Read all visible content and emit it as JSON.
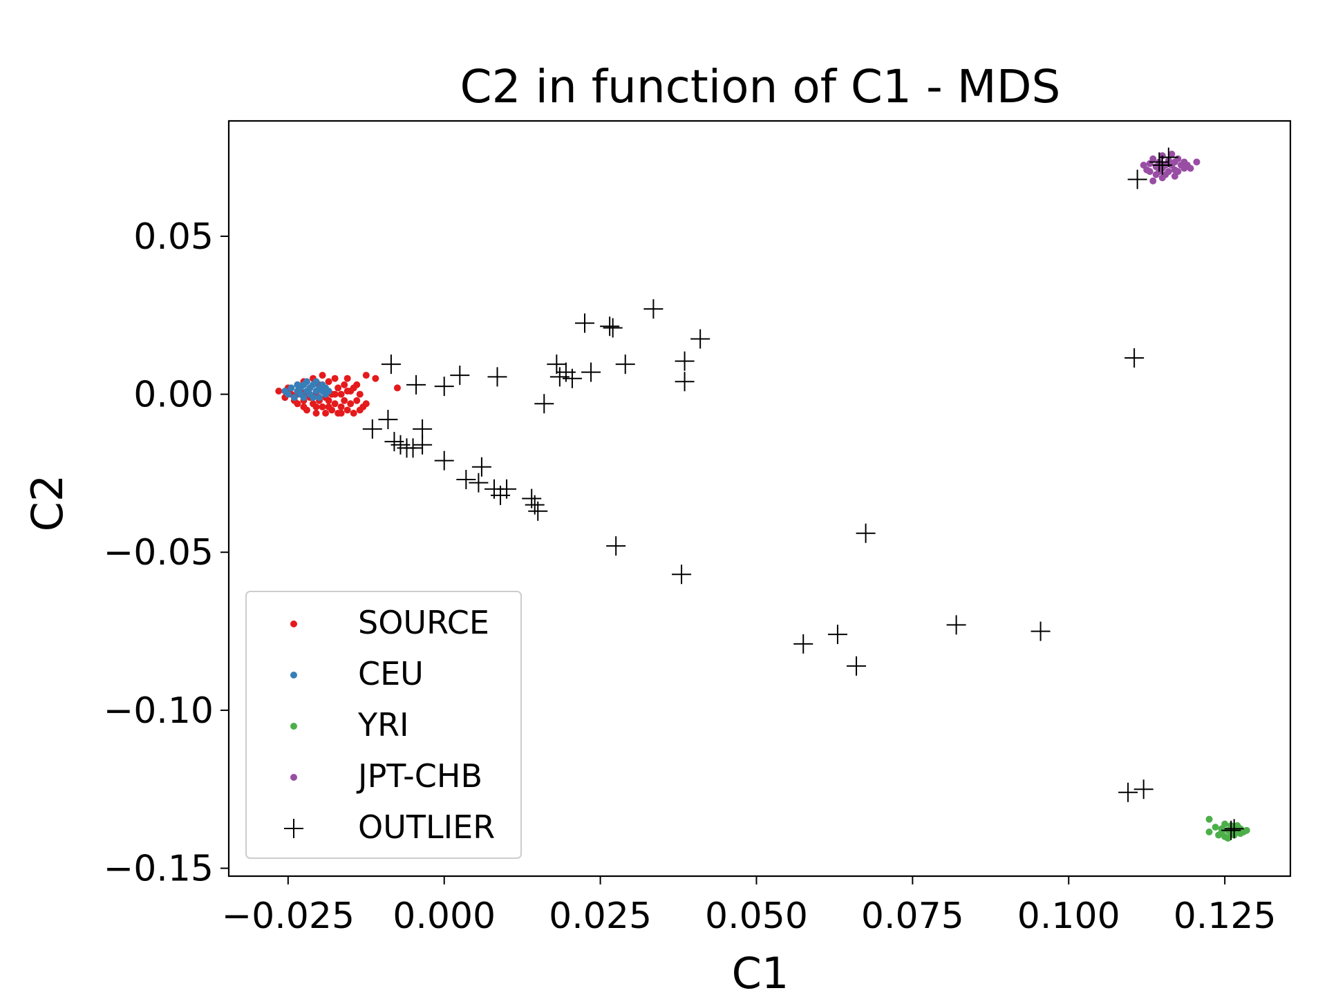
{
  "chart_data": {
    "type": "scatter",
    "title": "C2 in function of C1 - MDS",
    "xlabel": "C1",
    "ylabel": "C2",
    "xlim": [
      -0.0345,
      0.1355
    ],
    "ylim": [
      -0.1525,
      0.0865
    ],
    "xticks": [
      {
        "value": -0.025,
        "label": "−0.025"
      },
      {
        "value": 0.0,
        "label": "0.000"
      },
      {
        "value": 0.025,
        "label": "0.025"
      },
      {
        "value": 0.05,
        "label": "0.050"
      },
      {
        "value": 0.075,
        "label": "0.075"
      },
      {
        "value": 0.1,
        "label": "0.100"
      },
      {
        "value": 0.125,
        "label": "0.125"
      }
    ],
    "yticks": [
      {
        "value": 0.05,
        "label": "0.05"
      },
      {
        "value": 0.0,
        "label": "0.00"
      },
      {
        "value": -0.05,
        "label": "−0.05"
      },
      {
        "value": -0.1,
        "label": "−0.10"
      },
      {
        "value": -0.15,
        "label": "−0.15"
      }
    ],
    "grid": false,
    "legend_position": "lower-left",
    "series": [
      {
        "name": "SOURCE",
        "color": "#e41a1c",
        "marker": "dot",
        "points": [
          [
            -0.0265,
            0.001
          ],
          [
            -0.0255,
            -0.001
          ],
          [
            -0.025,
            0.002
          ],
          [
            -0.0245,
            0.0
          ],
          [
            -0.024,
            -0.002
          ],
          [
            -0.0235,
            0.003
          ],
          [
            -0.0235,
            -0.003
          ],
          [
            -0.023,
            0.001
          ],
          [
            -0.0225,
            -0.004
          ],
          [
            -0.0225,
            0.004
          ],
          [
            -0.022,
            0.0
          ],
          [
            -0.022,
            -0.005
          ],
          [
            -0.0215,
            0.002
          ],
          [
            -0.021,
            -0.003
          ],
          [
            -0.021,
            0.005
          ],
          [
            -0.0205,
            0.0
          ],
          [
            -0.0205,
            -0.006
          ],
          [
            -0.02,
            0.003
          ],
          [
            -0.02,
            -0.002
          ],
          [
            -0.0195,
            0.006
          ],
          [
            -0.0195,
            -0.004
          ],
          [
            -0.019,
            0.001
          ],
          [
            -0.019,
            -0.006
          ],
          [
            -0.0185,
            0.004
          ],
          [
            -0.0185,
            -0.002
          ],
          [
            -0.018,
            0.0
          ],
          [
            -0.018,
            -0.005
          ],
          [
            -0.0175,
            0.005
          ],
          [
            -0.0175,
            -0.003
          ],
          [
            -0.017,
            0.002
          ],
          [
            -0.017,
            -0.006
          ],
          [
            -0.0165,
            0.0
          ],
          [
            -0.0165,
            -0.004
          ],
          [
            -0.016,
            0.003
          ],
          [
            -0.016,
            -0.002
          ],
          [
            -0.0155,
            0.005
          ],
          [
            -0.0155,
            -0.005
          ],
          [
            -0.015,
            0.001
          ],
          [
            -0.015,
            -0.003
          ],
          [
            -0.0145,
            -0.006
          ],
          [
            -0.014,
            0.003
          ],
          [
            -0.014,
            -0.002
          ],
          [
            -0.0135,
            0.0
          ],
          [
            -0.013,
            -0.004
          ],
          [
            -0.0125,
            -0.003
          ],
          [
            -0.0125,
            0.006
          ],
          [
            -0.011,
            0.005
          ],
          [
            -0.0075,
            0.002
          ],
          [
            -0.0215,
            -0.001
          ],
          [
            -0.0235,
            0.0
          ],
          [
            -0.0195,
            0.001
          ],
          [
            -0.0175,
            0.0
          ],
          [
            -0.0155,
            0.001
          ],
          [
            -0.0205,
            -0.004
          ],
          [
            -0.0185,
            -0.004
          ],
          [
            -0.0165,
            -0.006
          ],
          [
            -0.0225,
            -0.002
          ],
          [
            -0.0145,
            0.002
          ],
          [
            -0.0135,
            -0.005
          ],
          [
            -0.019,
            -0.001
          ]
        ]
      },
      {
        "name": "CEU",
        "color": "#377eb8",
        "marker": "dot",
        "points": [
          [
            -0.0255,
            0.001
          ],
          [
            -0.025,
            0.0
          ],
          [
            -0.0245,
            0.002
          ],
          [
            -0.024,
            -0.001
          ],
          [
            -0.0235,
            0.001
          ],
          [
            -0.0235,
            0.003
          ],
          [
            -0.023,
            0.0
          ],
          [
            -0.023,
            0.002
          ],
          [
            -0.0225,
            -0.001
          ],
          [
            -0.0225,
            0.003
          ],
          [
            -0.022,
            0.001
          ],
          [
            -0.022,
            0.004
          ],
          [
            -0.0215,
            0.0
          ],
          [
            -0.0215,
            0.002
          ],
          [
            -0.021,
            0.003
          ],
          [
            -0.021,
            -0.001
          ],
          [
            -0.0205,
            0.001
          ],
          [
            -0.0205,
            0.004
          ],
          [
            -0.02,
            0.002
          ],
          [
            -0.02,
            -0.001
          ],
          [
            -0.0195,
            0.001
          ],
          [
            -0.0195,
            0.003
          ],
          [
            -0.019,
            0.0
          ],
          [
            -0.019,
            0.002
          ],
          [
            -0.0185,
            0.001
          ]
        ]
      },
      {
        "name": "YRI",
        "color": "#4daf4a",
        "marker": "dot",
        "points": [
          [
            0.1225,
            -0.1345
          ],
          [
            0.1225,
            -0.1385
          ],
          [
            0.1235,
            -0.137
          ],
          [
            0.124,
            -0.1395
          ],
          [
            0.1245,
            -0.1375
          ],
          [
            0.125,
            -0.136
          ],
          [
            0.125,
            -0.14
          ],
          [
            0.1255,
            -0.138
          ],
          [
            0.1255,
            -0.1405
          ],
          [
            0.126,
            -0.1365
          ],
          [
            0.126,
            -0.139
          ],
          [
            0.1265,
            -0.1375
          ],
          [
            0.1265,
            -0.1395
          ],
          [
            0.127,
            -0.1385
          ],
          [
            0.127,
            -0.1365
          ],
          [
            0.1275,
            -0.139
          ],
          [
            0.1275,
            -0.1375
          ],
          [
            0.128,
            -0.1385
          ],
          [
            0.1285,
            -0.138
          ],
          [
            0.1245,
            -0.1385
          ]
        ]
      },
      {
        "name": "JPT-CHB",
        "color": "#984ea3",
        "marker": "dot",
        "points": [
          [
            0.112,
            0.0725
          ],
          [
            0.1125,
            0.071
          ],
          [
            0.113,
            0.073
          ],
          [
            0.113,
            0.0705
          ],
          [
            0.1135,
            0.0745
          ],
          [
            0.114,
            0.072
          ],
          [
            0.114,
            0.0695
          ],
          [
            0.1145,
            0.0735
          ],
          [
            0.115,
            0.0715
          ],
          [
            0.115,
            0.0755
          ],
          [
            0.1155,
            0.0725
          ],
          [
            0.1155,
            0.0695
          ],
          [
            0.116,
            0.074
          ],
          [
            0.116,
            0.0705
          ],
          [
            0.1165,
            0.0725
          ],
          [
            0.1165,
            0.076
          ],
          [
            0.117,
            0.071
          ],
          [
            0.117,
            0.0735
          ],
          [
            0.1175,
            0.0745
          ],
          [
            0.1175,
            0.0705
          ],
          [
            0.118,
            0.0725
          ],
          [
            0.1185,
            0.0715
          ],
          [
            0.1185,
            0.0735
          ],
          [
            0.119,
            0.0725
          ],
          [
            0.1195,
            0.0715
          ],
          [
            0.1205,
            0.0735
          ],
          [
            0.1135,
            0.0675
          ],
          [
            0.115,
            0.0685
          ],
          [
            0.1145,
            0.0705
          ],
          [
            0.117,
            0.069
          ]
        ]
      },
      {
        "name": "OUTLIER",
        "color": "#000000",
        "marker": "plus",
        "points": [
          [
            -0.0085,
            0.0095
          ],
          [
            -0.0045,
            0.003
          ],
          [
            0.0,
            0.0025
          ],
          [
            0.0025,
            0.006
          ],
          [
            0.0085,
            0.0055
          ],
          [
            0.018,
            0.0095
          ],
          [
            0.0185,
            0.0055
          ],
          [
            0.0195,
            0.007
          ],
          [
            0.0205,
            0.005
          ],
          [
            0.0235,
            0.007
          ],
          [
            0.029,
            0.0095
          ],
          [
            0.0225,
            0.0225
          ],
          [
            0.0265,
            0.0215
          ],
          [
            0.027,
            0.021
          ],
          [
            0.0335,
            0.027
          ],
          [
            0.0385,
            0.0105
          ],
          [
            0.0385,
            0.004
          ],
          [
            0.041,
            0.0175
          ],
          [
            0.016,
            -0.003
          ],
          [
            -0.0115,
            -0.011
          ],
          [
            -0.009,
            -0.008
          ],
          [
            -0.008,
            -0.015
          ],
          [
            -0.007,
            -0.016
          ],
          [
            -0.006,
            -0.017
          ],
          [
            -0.005,
            -0.017
          ],
          [
            -0.0035,
            -0.016
          ],
          [
            -0.0035,
            -0.011
          ],
          [
            0.0,
            -0.021
          ],
          [
            0.0035,
            -0.027
          ],
          [
            0.0055,
            -0.028
          ],
          [
            0.006,
            -0.023
          ],
          [
            0.008,
            -0.03
          ],
          [
            0.009,
            -0.032
          ],
          [
            0.01,
            -0.03
          ],
          [
            0.014,
            -0.033
          ],
          [
            0.0145,
            -0.035
          ],
          [
            0.015,
            -0.037
          ],
          [
            0.0275,
            -0.048
          ],
          [
            0.038,
            -0.057
          ],
          [
            0.0675,
            -0.044
          ],
          [
            0.0575,
            -0.079
          ],
          [
            0.063,
            -0.076
          ],
          [
            0.066,
            -0.086
          ],
          [
            0.082,
            -0.073
          ],
          [
            0.0955,
            -0.075
          ],
          [
            0.1105,
            0.0115
          ],
          [
            0.111,
            0.068
          ],
          [
            0.1145,
            0.0735
          ],
          [
            0.115,
            0.0725
          ],
          [
            0.116,
            0.075
          ],
          [
            0.1095,
            -0.126
          ],
          [
            0.112,
            -0.125
          ],
          [
            0.126,
            -0.138
          ],
          [
            0.1265,
            -0.1375
          ]
        ]
      }
    ]
  }
}
